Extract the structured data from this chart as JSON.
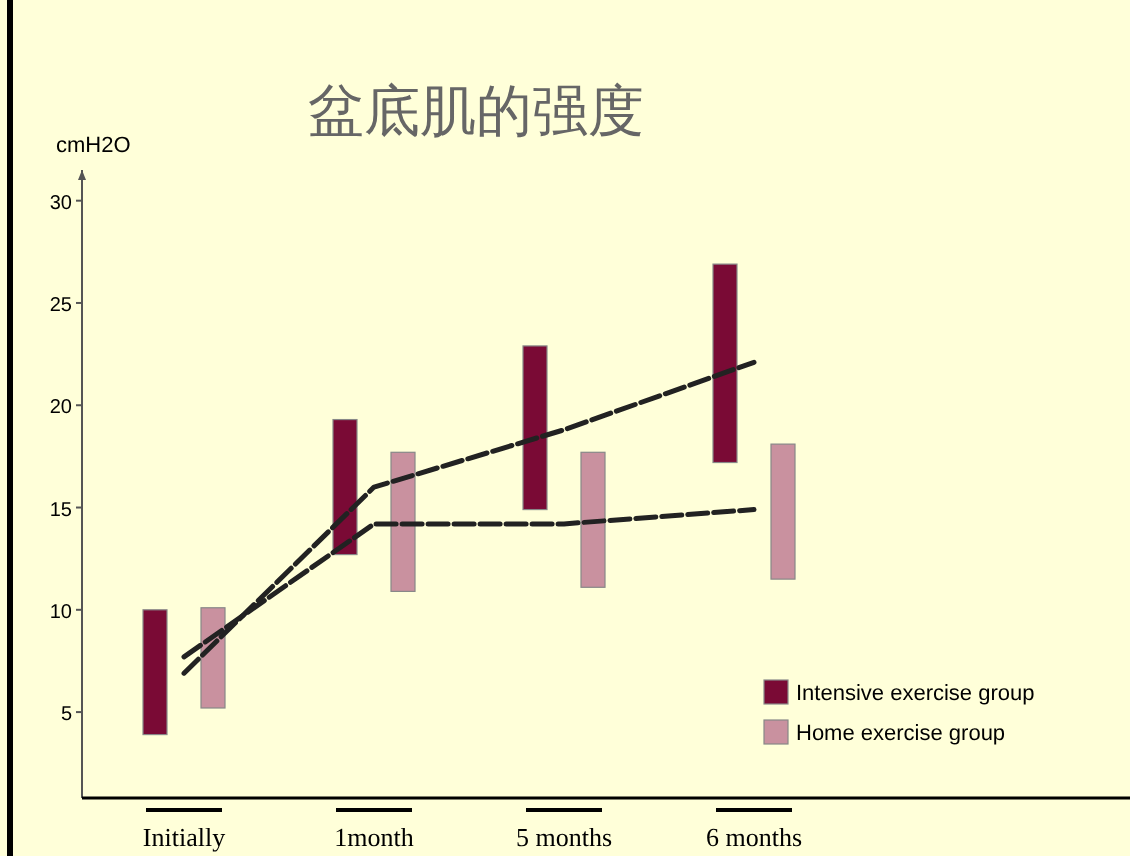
{
  "chart_data": {
    "type": "bar",
    "title": "盆底肌的强度",
    "ylabel": "cmH2O",
    "categories": [
      "Initially",
      "1month",
      "5 months",
      "6 months"
    ],
    "series": [
      {
        "name": "Intensive exercise group",
        "color": "#7a0a35",
        "base": [
          3.9,
          12.7,
          14.9,
          17.2
        ],
        "values": [
          6.1,
          6.6,
          8.0,
          9.7
        ]
      },
      {
        "name": "Home exercise group",
        "color": "#c9919f",
        "base": [
          5.2,
          10.9,
          11.1,
          11.5
        ],
        "values": [
          4.9,
          6.8,
          6.6,
          6.6
        ]
      },
      {
        "type": "line",
        "color": "#222222",
        "values": [
          6.9,
          16.0,
          18.8,
          22.1
        ]
      },
      {
        "type": "line",
        "color": "#222222",
        "values": [
          7.7,
          14.2,
          14.2,
          14.9
        ]
      }
    ],
    "ylim": [
      0.8,
      31.5
    ],
    "yticks": [
      5,
      10,
      15,
      20,
      25,
      30
    ],
    "legend": "bottom right",
    "line_style": "dashed",
    "grid": false
  }
}
